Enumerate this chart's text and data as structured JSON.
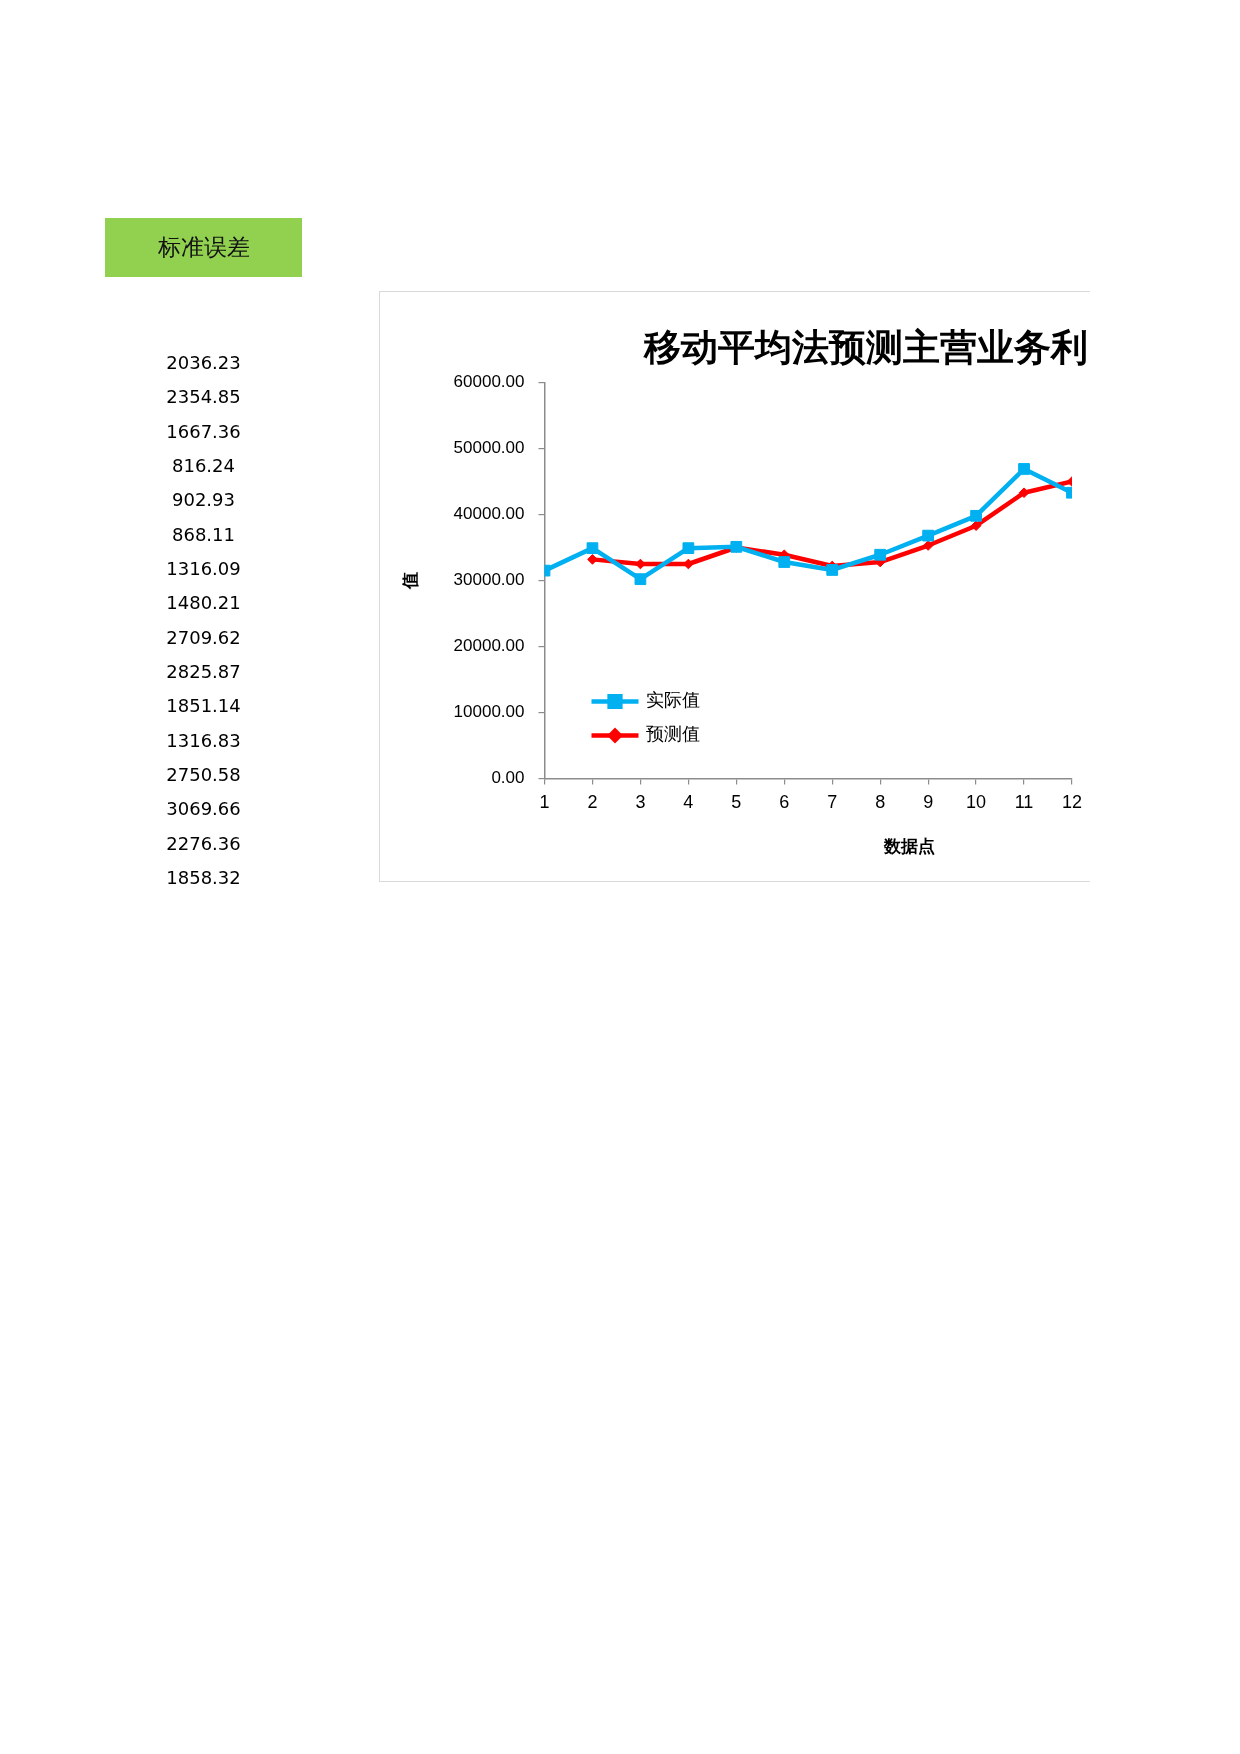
{
  "chart_data": [
    {
      "type": "other",
      "title": "标准误差",
      "annotations": [
        "2036.23",
        "2354.85",
        "1667.36",
        "816.24",
        "902.93",
        "868.11",
        "1316.09",
        "1480.21",
        "2709.62",
        "2825.87",
        "1851.14",
        "1316.83",
        "2750.58",
        "3069.66",
        "2276.36",
        "1858.32"
      ]
    },
    {
      "type": "line",
      "title": "移动平均法预测主营业务利",
      "xlabel": "数据点",
      "ylabel": "值",
      "x": [
        1,
        2,
        3,
        4,
        5,
        6,
        7,
        8,
        9,
        10,
        11,
        12
      ],
      "series": [
        {
          "name": "实际值",
          "color": "#00b0f0",
          "marker": "square",
          "values": [
            31500,
            34900,
            30200,
            34900,
            35100,
            32800,
            31600,
            33900,
            36800,
            39800,
            46900,
            43300
          ]
        },
        {
          "name": "预测值",
          "color": "#ff0000",
          "marker": "diamond",
          "values": [
            null,
            33200,
            32500,
            32500,
            35000,
            33900,
            32200,
            32800,
            35300,
            38300,
            43300,
            45000
          ]
        }
      ],
      "xlim": [
        1,
        12
      ],
      "xticks": [
        1,
        2,
        3,
        4,
        5,
        6,
        7,
        8,
        9,
        10,
        11,
        12
      ],
      "ylim": [
        0,
        60000
      ],
      "yticks": [
        {
          "value": 0,
          "label": "0.00"
        },
        {
          "value": 10000,
          "label": "10000.00"
        },
        {
          "value": 20000,
          "label": "20000.00"
        },
        {
          "value": 30000,
          "label": "30000.00"
        },
        {
          "value": 40000,
          "label": "40000.00"
        },
        {
          "value": 50000,
          "label": "50000.00"
        },
        {
          "value": 60000,
          "label": "60000.00"
        }
      ],
      "grid": false,
      "legend": "bottom left"
    }
  ]
}
